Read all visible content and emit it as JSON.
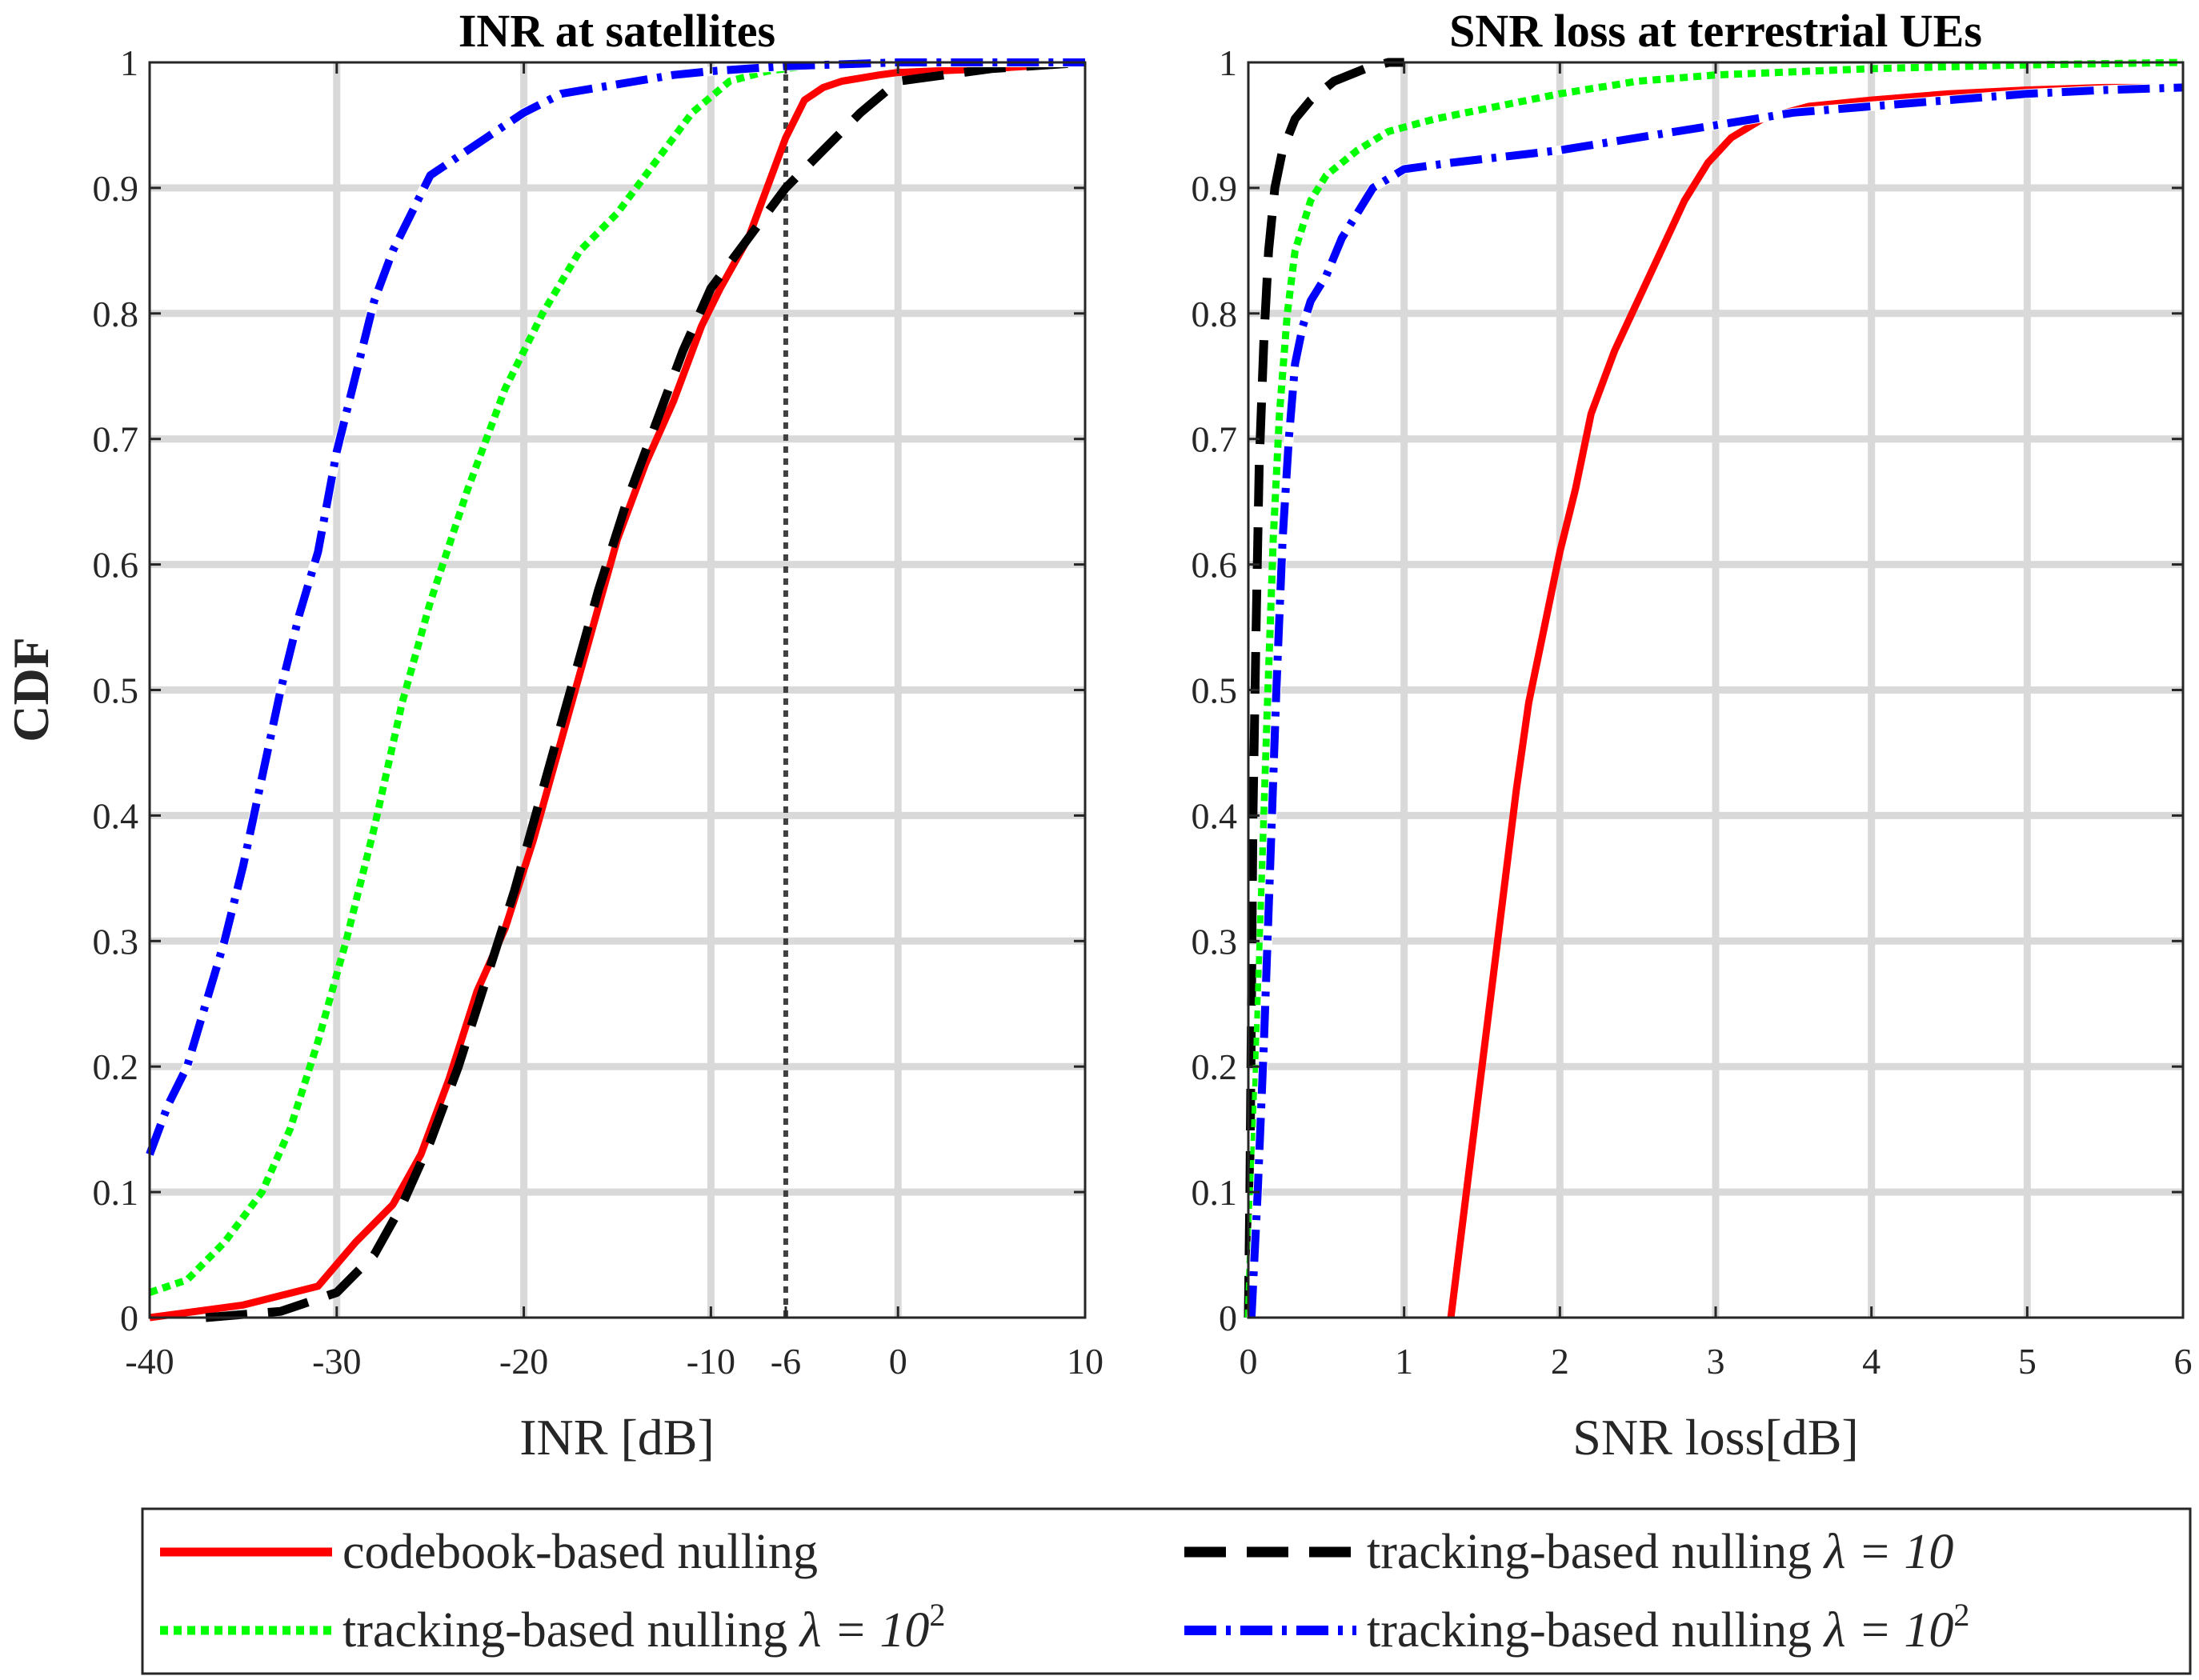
{
  "colors": {
    "codebook": "#ff0000",
    "track10": "#000000",
    "track100_green": "#00ff00",
    "track100_blue": "#0000ff",
    "threshold": "#404040",
    "grid": "#d9d9d9"
  },
  "legend": {
    "items": [
      {
        "text": "codebook-based nulling",
        "lambda": "",
        "sup": ""
      },
      {
        "text": "tracking-based nulling ",
        "lambda": "λ = 10",
        "sup": ""
      },
      {
        "text": "tracking-based nulling ",
        "lambda": "λ = 10",
        "sup": "2"
      },
      {
        "text": "tracking-based nulling ",
        "lambda": "λ = 10",
        "sup": "2"
      }
    ]
  },
  "chart_data": [
    {
      "type": "line",
      "title": "INR at satellites",
      "xlabel": "INR [dB]",
      "ylabel": "CDF",
      "xlim": [
        -40,
        10
      ],
      "ylim": [
        0,
        1
      ],
      "xticks": [
        -40,
        -30,
        -20,
        -10,
        -6,
        0,
        10
      ],
      "xtick_labels": [
        "-40",
        "-30",
        "-20",
        "-10",
        "-6",
        "0",
        "10"
      ],
      "yticks": [
        0,
        0.1,
        0.2,
        0.3,
        0.4,
        0.5,
        0.6,
        0.7,
        0.8,
        0.9,
        1
      ],
      "ytick_labels": [
        "0",
        "0.1",
        "0.2",
        "0.3",
        "0.4",
        "0.5",
        "0.6",
        "0.7",
        "0.8",
        "0.9",
        "1"
      ],
      "grid": true,
      "vline": {
        "x": -6,
        "style": "dotted"
      },
      "series": [
        {
          "key": "codebook",
          "style": "solid",
          "x": [
            -40,
            -35,
            -31,
            -29,
            -27,
            -25.5,
            -24,
            -22.5,
            -21,
            -19.5,
            -18,
            -16.5,
            -15,
            -13.5,
            -12,
            -10.5,
            -9.5,
            -8,
            -7,
            -6,
            -5,
            -4,
            -3,
            -1,
            0,
            5,
            10
          ],
          "y": [
            0,
            0.01,
            0.025,
            0.06,
            0.09,
            0.13,
            0.19,
            0.26,
            0.31,
            0.38,
            0.46,
            0.54,
            0.62,
            0.68,
            0.73,
            0.79,
            0.82,
            0.86,
            0.9,
            0.94,
            0.97,
            0.98,
            0.985,
            0.99,
            0.992,
            0.995,
            1
          ]
        },
        {
          "key": "track10",
          "style": "dashed",
          "x": [
            -37,
            -33,
            -30,
            -28,
            -26.5,
            -25,
            -23.5,
            -22,
            -20.5,
            -19,
            -17.5,
            -16,
            -14.5,
            -13,
            -11.5,
            -10,
            -8.5,
            -7,
            -6,
            -4,
            -2,
            0,
            5,
            10
          ],
          "y": [
            0,
            0.005,
            0.02,
            0.05,
            0.09,
            0.14,
            0.2,
            0.27,
            0.34,
            0.42,
            0.5,
            0.58,
            0.65,
            0.71,
            0.77,
            0.82,
            0.85,
            0.88,
            0.9,
            0.93,
            0.96,
            0.985,
            0.995,
            1
          ]
        },
        {
          "key": "track100_green",
          "style": "dotted",
          "x": [
            -40,
            -38,
            -36,
            -34,
            -32.5,
            -31,
            -29.5,
            -28,
            -26.5,
            -25,
            -23,
            -21,
            -19,
            -17,
            -15,
            -13,
            -11,
            -9,
            -7,
            -5,
            -2,
            0
          ],
          "y": [
            0.02,
            0.03,
            0.06,
            0.1,
            0.15,
            0.22,
            0.3,
            0.39,
            0.49,
            0.57,
            0.66,
            0.74,
            0.8,
            0.85,
            0.88,
            0.92,
            0.96,
            0.985,
            0.993,
            0.997,
            1,
            1
          ]
        },
        {
          "key": "track100_blue",
          "style": "dashdot",
          "x": [
            -40,
            -39,
            -38,
            -37,
            -36,
            -35,
            -34,
            -33,
            -32,
            -31,
            -30,
            -29,
            -28,
            -27,
            -26,
            -25,
            -24,
            -22,
            -20,
            -18,
            -16,
            -14,
            -12,
            -10,
            -8,
            -6,
            -4,
            -2,
            0,
            5,
            10
          ],
          "y": [
            0.13,
            0.17,
            0.2,
            0.25,
            0.3,
            0.36,
            0.43,
            0.5,
            0.56,
            0.61,
            0.69,
            0.75,
            0.81,
            0.85,
            0.88,
            0.91,
            0.92,
            0.94,
            0.96,
            0.975,
            0.98,
            0.985,
            0.99,
            0.993,
            0.995,
            0.997,
            0.998,
            0.999,
            1,
            1,
            1
          ]
        }
      ]
    },
    {
      "type": "line",
      "title": "SNR loss at terrestrial UEs",
      "xlabel": "SNR loss[dB]",
      "ylabel": "",
      "xlim": [
        0,
        6
      ],
      "ylim": [
        0,
        1
      ],
      "xticks": [
        0,
        1,
        2,
        3,
        4,
        5,
        6
      ],
      "xtick_labels": [
        "0",
        "1",
        "2",
        "3",
        "4",
        "5",
        "6"
      ],
      "yticks": [
        0,
        0.1,
        0.2,
        0.3,
        0.4,
        0.5,
        0.6,
        0.7,
        0.8,
        0.9,
        1
      ],
      "ytick_labels": [
        "0",
        "0.1",
        "0.2",
        "0.3",
        "0.4",
        "0.5",
        "0.6",
        "0.7",
        "0.8",
        "0.9",
        "1"
      ],
      "grid": true,
      "series": [
        {
          "key": "codebook",
          "style": "solid",
          "x": [
            1.3,
            1.35,
            1.42,
            1.5,
            1.58,
            1.65,
            1.72,
            1.8,
            1.9,
            2.0,
            2.1,
            2.2,
            2.35,
            2.5,
            2.65,
            2.8,
            2.95,
            3.1,
            3.3,
            3.6,
            4.0,
            4.5,
            5.0,
            5.5,
            6.0
          ],
          "y": [
            0,
            0.05,
            0.12,
            0.2,
            0.28,
            0.35,
            0.42,
            0.49,
            0.55,
            0.61,
            0.66,
            0.72,
            0.77,
            0.81,
            0.85,
            0.89,
            0.92,
            0.94,
            0.955,
            0.965,
            0.97,
            0.975,
            0.978,
            0.98,
            0.98
          ]
        },
        {
          "key": "track10",
          "style": "dashed",
          "x": [
            0,
            0.01,
            0.02,
            0.03,
            0.05,
            0.07,
            0.1,
            0.13,
            0.17,
            0.22,
            0.3,
            0.4,
            0.55,
            0.75,
            0.9,
            1.0
          ],
          "y": [
            0,
            0.1,
            0.25,
            0.4,
            0.55,
            0.68,
            0.78,
            0.85,
            0.9,
            0.93,
            0.955,
            0.97,
            0.985,
            0.995,
            1,
            1
          ]
        },
        {
          "key": "track100_green",
          "style": "dotted",
          "x": [
            0,
            0.04,
            0.08,
            0.12,
            0.16,
            0.2,
            0.25,
            0.3,
            0.4,
            0.5,
            0.7,
            0.9,
            1.2,
            1.6,
            2.0,
            2.5,
            3.0,
            4.0,
            5.0,
            6.0
          ],
          "y": [
            0,
            0.15,
            0.32,
            0.48,
            0.62,
            0.72,
            0.8,
            0.85,
            0.89,
            0.91,
            0.93,
            0.945,
            0.955,
            0.965,
            0.975,
            0.985,
            0.99,
            0.995,
            0.998,
            1
          ]
        },
        {
          "key": "track100_blue",
          "style": "dashdot",
          "x": [
            0.02,
            0.06,
            0.1,
            0.14,
            0.18,
            0.22,
            0.26,
            0.3,
            0.35,
            0.4,
            0.5,
            0.6,
            0.7,
            0.8,
            1.0,
            1.3,
            2.0,
            2.5,
            3.0,
            3.5,
            4.0,
            4.5,
            5.0,
            5.5,
            6.0
          ],
          "y": [
            0,
            0.1,
            0.22,
            0.36,
            0.5,
            0.62,
            0.7,
            0.76,
            0.79,
            0.81,
            0.83,
            0.86,
            0.88,
            0.9,
            0.915,
            0.92,
            0.93,
            0.94,
            0.95,
            0.96,
            0.965,
            0.97,
            0.975,
            0.978,
            0.98
          ]
        }
      ]
    }
  ]
}
